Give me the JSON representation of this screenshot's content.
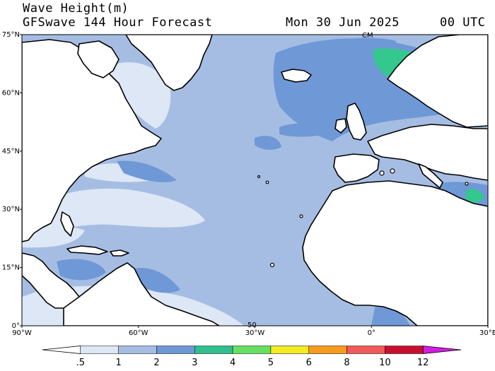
{
  "header": {
    "variable": "Wave Height(m)",
    "product": "GFSwave 144 Hour Forecast",
    "date": "Mon 30 Jun 2025",
    "cycle": "00 UTC"
  },
  "axes": {
    "lat_labels": [
      "75°N",
      "60°N",
      "45°N",
      "30°N",
      "15°N",
      "0°"
    ],
    "lon_labels": [
      "90°W",
      "60°W",
      "30°W",
      "0°",
      "30°E"
    ],
    "lon_range": [
      -90,
      30
    ],
    "lat_range": [
      0,
      75
    ]
  },
  "annotations": {
    "sea_label": "50",
    "pole_label": "CM"
  },
  "colorbar": {
    "ticks": [
      ".5",
      "1",
      "2",
      "3",
      "4",
      "5",
      "6",
      "8",
      "10",
      "12"
    ],
    "colors": [
      "#ffffff",
      "#dde7f5",
      "#a6bde3",
      "#6f98d6",
      "#2fc08e",
      "#66e060",
      "#f5eb21",
      "#f79b1f",
      "#f05a5a",
      "#c8102e",
      "#d01ee0"
    ]
  },
  "palette": {
    "background_wave": "#a6bde3",
    "low_wave": "#dde7f5",
    "mid_wave": "#6f98d6",
    "high_wave": "#34c88e",
    "land": "#ffffff",
    "coast": "#000000"
  }
}
